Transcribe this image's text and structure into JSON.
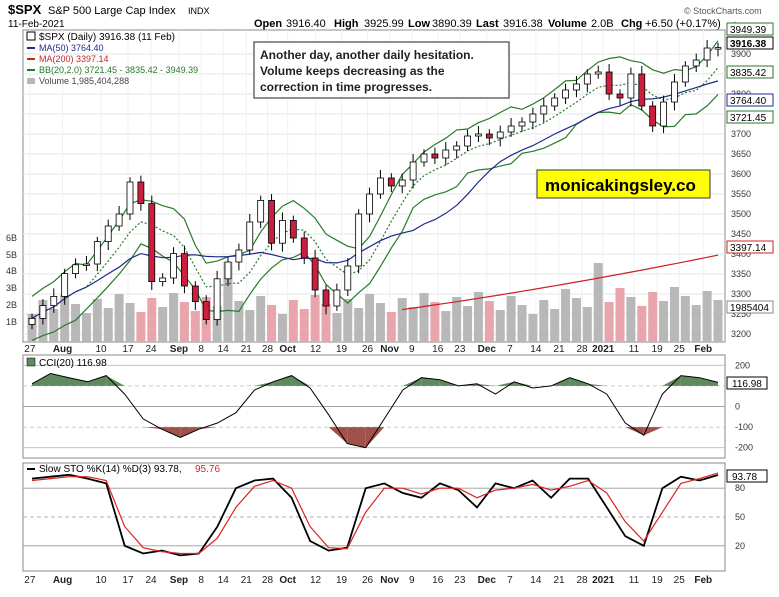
{
  "header": {
    "symbol": "$SPX",
    "name": "S&P 500 Large Cap Index",
    "exchange": "INDX",
    "date": "11-Feb-2021",
    "open_label": "Open",
    "open": "3916.40",
    "high_label": "High",
    "high": "3925.99",
    "low_label": "Low",
    "low": "3890.39",
    "last_label": "Last",
    "last": "3916.38",
    "volume_label": "Volume",
    "volume": "2.0B",
    "chg_label": "Chg",
    "chg": "+6.50 (+0.17%)",
    "chg_arrow": "▲",
    "brand": "© StockCharts.com"
  },
  "legend": {
    "price": "$SPX (Daily) 3916.38 (11 Feb)",
    "ma50": "MA(50) 3764.40",
    "ma200": "MA(200) 3397.14",
    "bb": "BB(20,2.0) 3721.45 - 3835.42 - 3949.39",
    "volume": "Volume 1,985,404,288"
  },
  "annotation": {
    "line1": "Another day, another daily hesitation.",
    "line2": "Volume keeps decreasing as the",
    "line3": "correction in time progresses."
  },
  "watermark": "monicakingsley.co",
  "price_axis": {
    "ticks": [
      "3900",
      "3850",
      "3800",
      "3750",
      "3700",
      "3650",
      "3600",
      "3550",
      "3500",
      "3450",
      "3400",
      "3350",
      "3300",
      "3250",
      "3200"
    ],
    "tags": {
      "bb_upper": "3949.39",
      "last": "3916.38",
      "bb_mid": "3835.42",
      "ma50": "3764.40",
      "bb_lower": "3721.45",
      "ma200": "3397.14",
      "volume": "1985404"
    }
  },
  "volume_axis": {
    "ticks": [
      "6B",
      "5B",
      "4B",
      "3B",
      "2B",
      "1B"
    ]
  },
  "x_axis": {
    "labels": [
      "27",
      "Aug",
      "10",
      "17",
      "24",
      "Sep",
      "8",
      "14",
      "21",
      "28",
      "Oct",
      "12",
      "19",
      "26",
      "Nov",
      "9",
      "16",
      "23",
      "Dec",
      "7",
      "14",
      "21",
      "28",
      "2021",
      "11",
      "19",
      "25",
      "Feb",
      "8"
    ],
    "bold": [
      "Aug",
      "Sep",
      "Oct",
      "Nov",
      "Dec",
      "2021",
      "Feb"
    ]
  },
  "cci": {
    "title": "CCI(20) 116.98",
    "value_tag": "116.98",
    "ticks": [
      "200",
      "100",
      "0",
      "-100",
      "-200"
    ]
  },
  "sto": {
    "title_main": "Slow STO %K(14) %D(3) 93.78,",
    "title_d": "95.76",
    "value_tag": "93.78",
    "ticks": [
      "80",
      "50",
      "20"
    ]
  },
  "colors": {
    "up": "#ffffff",
    "down": "#cc1f3f",
    "candle_outline": "#000000",
    "ma50": "#1f2a8c",
    "ma200": "#cc2222",
    "bb": "#2a7a2a",
    "bb_mid": "#2a7a2a",
    "volume_up": "#b8b8b8",
    "volume_down": "#e8a6ac",
    "cci_pos": "#5e8a5e",
    "cci_neg": "#a0524a",
    "sto_k": "#000000",
    "sto_d": "#dd2222",
    "watermark_bg": "#ffff00",
    "annotation_border": "#333333"
  },
  "chart_data": [
    {
      "type": "candlestick",
      "title": "$SPX (Daily) 3916.38 (11 Feb)",
      "ylim": [
        3180,
        3960
      ],
      "x": [
        "27",
        "Aug",
        "10",
        "17",
        "24",
        "Sep",
        "8",
        "14",
        "21",
        "28",
        "Oct",
        "12",
        "19",
        "26",
        "Nov",
        "9",
        "16",
        "23",
        "Dec",
        "7",
        "14",
        "21",
        "28",
        "2021",
        "11",
        "19",
        "25",
        "Feb",
        "8"
      ],
      "close_series_approx": [
        3239,
        3271,
        3294,
        3351,
        3373,
        3375,
        3431,
        3470,
        3500,
        3580,
        3526,
        3331,
        3340,
        3401,
        3320,
        3281,
        3236,
        3338,
        3380,
        3410,
        3480,
        3534,
        3427,
        3484,
        3440,
        3390,
        3310,
        3270,
        3310,
        3370,
        3500,
        3550,
        3590,
        3570,
        3585,
        3630,
        3650,
        3640,
        3660,
        3670,
        3695,
        3700,
        3690,
        3705,
        3720,
        3730,
        3750,
        3770,
        3790,
        3810,
        3825,
        3850,
        3855,
        3800,
        3790,
        3850,
        3770,
        3720,
        3780,
        3830,
        3870,
        3885,
        3915,
        3916
      ],
      "series_values": [
        {
          "name": "MA(50)",
          "last": 3764.4
        },
        {
          "name": "MA(200)",
          "last": 3397.14
        },
        {
          "name": "BB(20,2.0)",
          "values": [
            3721.45,
            3835.42,
            3949.39
          ]
        },
        {
          "name": "Volume",
          "last": 1985404288
        }
      ]
    },
    {
      "type": "line",
      "name": "CCI(20)",
      "ylim": [
        -250,
        250
      ],
      "values": [
        110,
        160,
        140,
        120,
        150,
        60,
        -60,
        -110,
        -150,
        -110,
        -80,
        -30,
        80,
        120,
        150,
        90,
        -40,
        -180,
        -200,
        -60,
        80,
        140,
        130,
        100,
        110,
        60,
        120,
        90,
        100,
        140,
        110,
        60,
        -80,
        -140,
        60,
        150,
        140,
        116.98
      ]
    },
    {
      "type": "line",
      "name": "Slow STO %K(14) %D(3)",
      "ylim": [
        0,
        100
      ],
      "series": [
        {
          "name": "%K",
          "values": [
            90,
            92,
            94,
            90,
            85,
            20,
            12,
            15,
            10,
            12,
            40,
            80,
            88,
            90,
            70,
            25,
            15,
            18,
            80,
            85,
            75,
            70,
            85,
            78,
            60,
            85,
            80,
            88,
            70,
            90,
            90,
            60,
            30,
            20,
            80,
            92,
            88,
            93.78
          ]
        },
        {
          "name": "%D",
          "values": [
            88,
            90,
            92,
            92,
            88,
            40,
            18,
            14,
            12,
            12,
            28,
            60,
            82,
            88,
            80,
            40,
            18,
            17,
            55,
            80,
            80,
            74,
            80,
            80,
            70,
            78,
            80,
            84,
            78,
            82,
            88,
            75,
            45,
            25,
            55,
            85,
            90,
            95.76
          ]
        }
      ]
    }
  ]
}
